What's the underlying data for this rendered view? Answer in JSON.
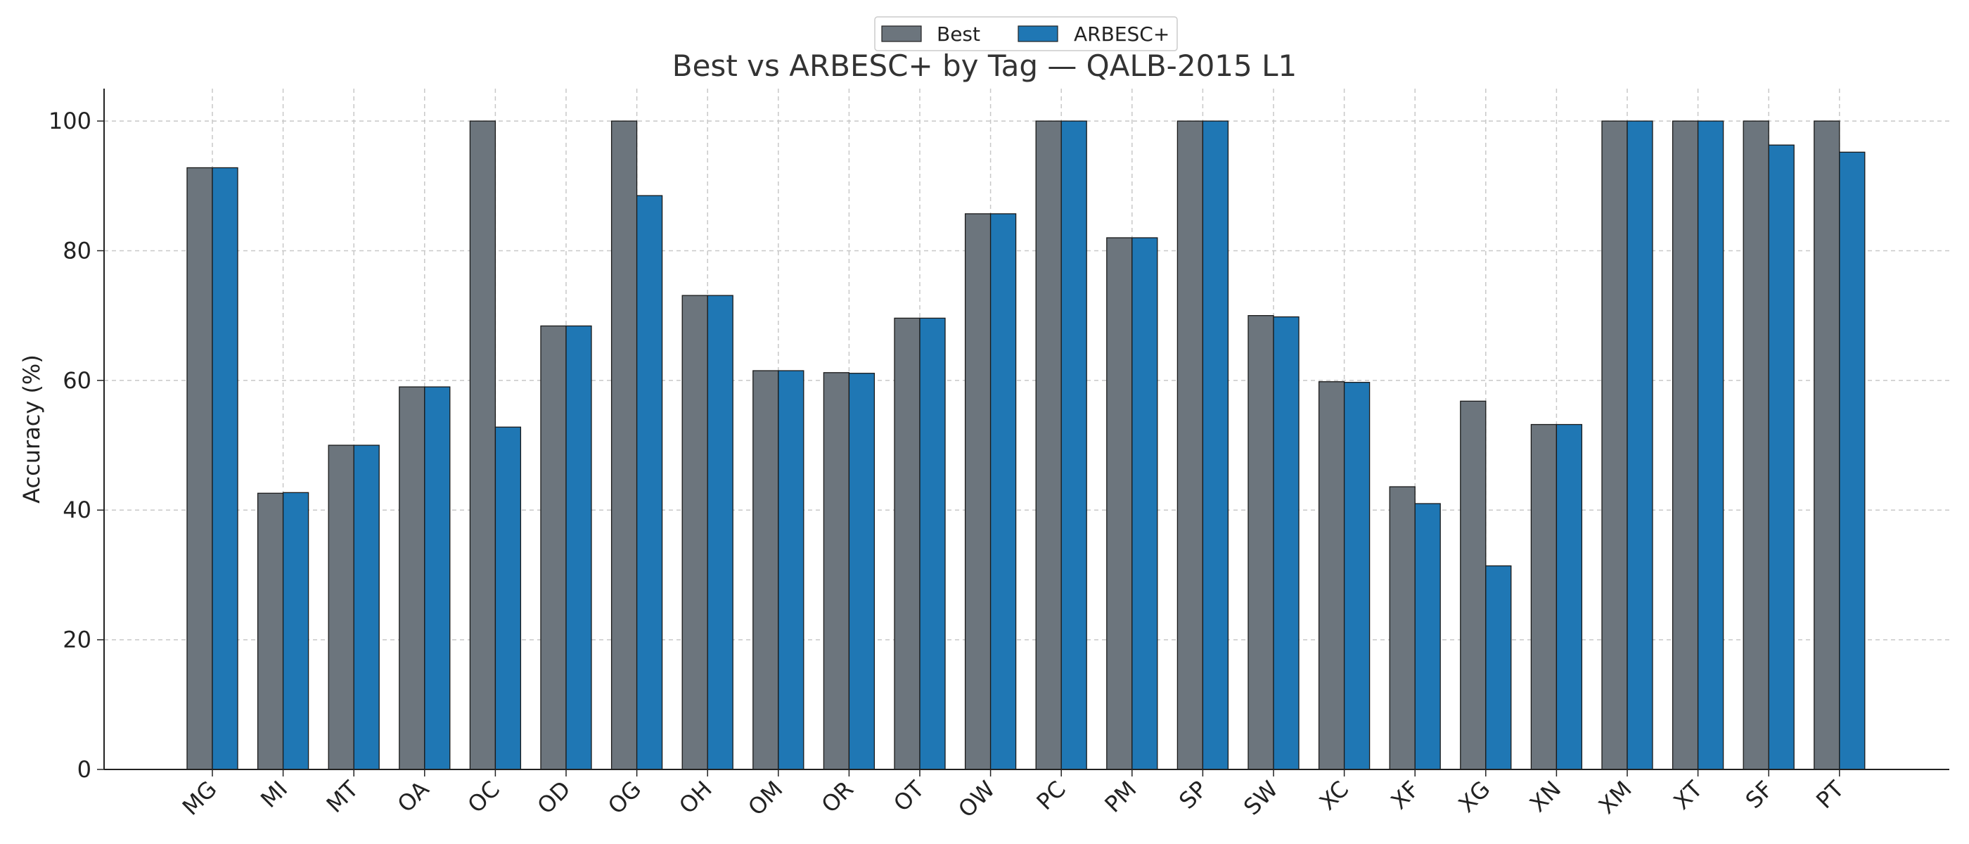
{
  "chart_data": {
    "type": "bar",
    "title": "Best vs ARBESC+ by Tag — QALB-2015 L1",
    "xlabel": "",
    "ylabel": "Accuracy (%)",
    "ylim": [
      0,
      105
    ],
    "yticks": [
      0,
      20,
      40,
      60,
      80,
      100
    ],
    "grid": true,
    "legend_position": "top-center",
    "categories": [
      "MG",
      "MI",
      "MT",
      "OA",
      "OC",
      "OD",
      "OG",
      "OH",
      "OM",
      "OR",
      "OT",
      "OW",
      "PC",
      "PM",
      "SP",
      "SW",
      "XC",
      "XF",
      "XG",
      "XN",
      "XM",
      "XT",
      "SF",
      "PT"
    ],
    "series": [
      {
        "name": "Best",
        "color": "#6c757d",
        "values": [
          92.8,
          42.6,
          50.0,
          59.0,
          100.0,
          68.4,
          100.0,
          73.1,
          61.5,
          61.2,
          69.6,
          85.7,
          100.0,
          82.0,
          100.0,
          70.0,
          59.8,
          43.6,
          56.8,
          53.2,
          100.0,
          100.0,
          100.0,
          100.0
        ]
      },
      {
        "name": "ARBESC+",
        "color": "#1f77b4",
        "values": [
          92.8,
          42.7,
          50.0,
          59.0,
          52.8,
          68.4,
          88.5,
          73.1,
          61.5,
          61.1,
          69.6,
          85.7,
          100.0,
          82.0,
          100.0,
          69.8,
          59.7,
          41.0,
          31.4,
          53.2,
          100.0,
          100.0,
          96.3,
          95.2
        ]
      }
    ]
  }
}
